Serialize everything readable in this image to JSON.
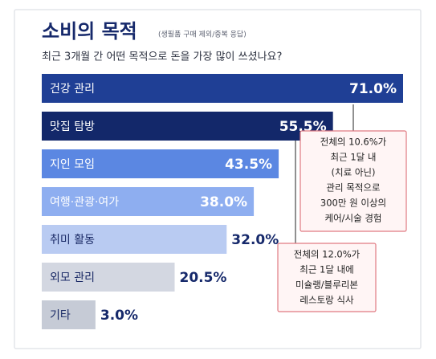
{
  "chart_data": {
    "type": "bar",
    "title": "소비의 목적",
    "subtitle": "(생필품 구매 제외/중복 응답)",
    "question": "최근 3개월 간 어떤 목적으로 돈을 가장 많이 쓰셨나요?",
    "categories": [
      "건강 관리",
      "맛집 탐방",
      "지인 모임",
      "여행·관광·여가",
      "취미 활동",
      "외모 관리",
      "기타"
    ],
    "values": [
      71.0,
      55.5,
      43.5,
      38.0,
      32.0,
      20.5,
      3.0
    ],
    "value_labels": [
      "71.0%",
      "55.5%",
      "43.5%",
      "38.0%",
      "32.0%",
      "20.5%",
      "3.0%"
    ],
    "colors": [
      "#1f3f95",
      "#13286a",
      "#5b87e2",
      "#8eaef0",
      "#b9cbf2",
      "#d3d7e1",
      "#c6cbd6"
    ],
    "annotations": [
      {
        "lines": [
          "전체의 10.6%가",
          "최근 1달 내",
          "(치료 아닌)",
          "관리 목적으로",
          "300만 원 이상의",
          "케어/시술 경험"
        ]
      },
      {
        "lines": [
          "전체의 12.0%가",
          "최근 1달 내에",
          "미슐랭/블루리본",
          "레스토랑 식사"
        ]
      }
    ]
  }
}
